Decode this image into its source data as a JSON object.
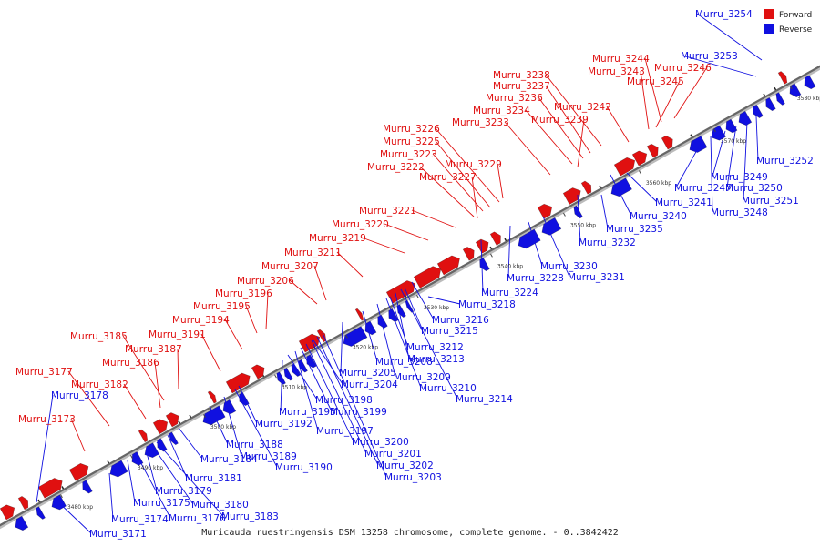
{
  "legend": {
    "forward_label": "Forward",
    "reverse_label": "Reverse",
    "forward_color": "#e01010",
    "reverse_color": "#1010e0"
  },
  "caption": "Muricauda ruestringensis DSM 13258 chromosome, complete genome. - 0..3842422",
  "axis": {
    "ticks": [
      "3480 kbp",
      "3490 kbp",
      "3500 kbp",
      "3510 kbp",
      "3520 kbp",
      "3530 kbp",
      "3540 kbp",
      "3550 kbp",
      "3560 kbp",
      "3570 kbp",
      "3580 kbp"
    ]
  },
  "forward_genes": [
    "Murru_3173",
    "Murru_3177",
    "Murru_3182",
    "Murru_3185",
    "Murru_3186",
    "Murru_3187",
    "Murru_3191",
    "Murru_3194",
    "Murru_3195",
    "Murru_3196",
    "Murru_3206",
    "Murru_3207",
    "Murru_3211",
    "Murru_3219",
    "Murru_3220",
    "Murru_3221",
    "Murru_3222",
    "Murru_3223",
    "Murru_3225",
    "Murru_3226",
    "Murru_3227",
    "Murru_3229",
    "Murru_3233",
    "Murru_3234",
    "Murru_3236",
    "Murru_3237",
    "Murru_3238",
    "Murru_3239",
    "Murru_3242",
    "Murru_3243",
    "Murru_3244",
    "Murru_3245",
    "Murru_3246"
  ],
  "reverse_genes": [
    "Murru_3171",
    "Murru_3174",
    "Murru_3175",
    "Murru_3176",
    "Murru_3178",
    "Murru_3179",
    "Murru_3180",
    "Murru_3181",
    "Murru_3183",
    "Murru_3184",
    "Murru_3188",
    "Murru_3189",
    "Murru_3190",
    "Murru_3192",
    "Murru_3193",
    "Murru_3197",
    "Murru_3198",
    "Murru_3199",
    "Murru_3200",
    "Murru_3201",
    "Murru_3202",
    "Murru_3203",
    "Murru_3204",
    "Murru_3205",
    "Murru_3208",
    "Murru_3209",
    "Murru_3210",
    "Murru_3212",
    "Murru_3213",
    "Murru_3214",
    "Murru_3215",
    "Murru_3216",
    "Murru_3218",
    "Murru_3224",
    "Murru_3228",
    "Murru_3230",
    "Murru_3231",
    "Murru_3232",
    "Murru_3235",
    "Murru_3240",
    "Murru_3241",
    "Murru_3247",
    "Murru_3248",
    "Murru_3249",
    "Murru_3250",
    "Murru_3251",
    "Murru_3252",
    "Murru_3253",
    "Murru_3254"
  ]
}
